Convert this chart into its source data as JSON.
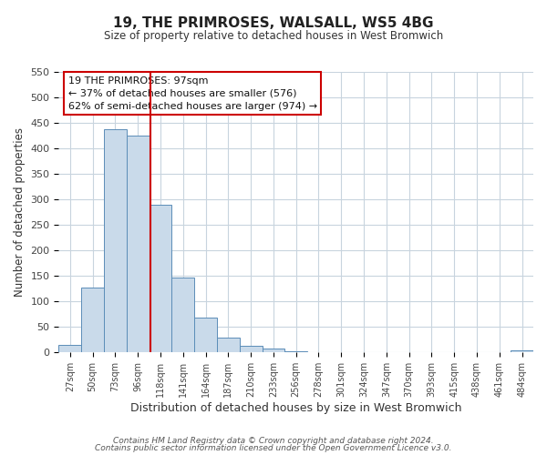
{
  "title": "19, THE PRIMROSES, WALSALL, WS5 4BG",
  "subtitle": "Size of property relative to detached houses in West Bromwich",
  "xlabel": "Distribution of detached houses by size in West Bromwich",
  "ylabel": "Number of detached properties",
  "bin_labels": [
    "27sqm",
    "50sqm",
    "73sqm",
    "96sqm",
    "118sqm",
    "141sqm",
    "164sqm",
    "187sqm",
    "210sqm",
    "233sqm",
    "256sqm",
    "278sqm",
    "301sqm",
    "324sqm",
    "347sqm",
    "370sqm",
    "393sqm",
    "415sqm",
    "438sqm",
    "461sqm",
    "484sqm"
  ],
  "bar_values": [
    15,
    128,
    438,
    425,
    290,
    147,
    68,
    29,
    13,
    8,
    2,
    0,
    0,
    0,
    0,
    0,
    0,
    0,
    0,
    0,
    5
  ],
  "bar_color": "#c9daea",
  "bar_edge_color": "#5b8db8",
  "vline_color": "#cc0000",
  "annotation_title": "19 THE PRIMROSES: 97sqm",
  "annotation_line1": "← 37% of detached houses are smaller (576)",
  "annotation_line2": "62% of semi-detached houses are larger (974) →",
  "annotation_box_edge_color": "#cc0000",
  "ylim": [
    0,
    550
  ],
  "yticks": [
    0,
    50,
    100,
    150,
    200,
    250,
    300,
    350,
    400,
    450,
    500,
    550
  ],
  "footer1": "Contains HM Land Registry data © Crown copyright and database right 2024.",
  "footer2": "Contains public sector information licensed under the Open Government Licence v3.0.",
  "background_color": "#ffffff",
  "grid_color": "#c8d4de"
}
